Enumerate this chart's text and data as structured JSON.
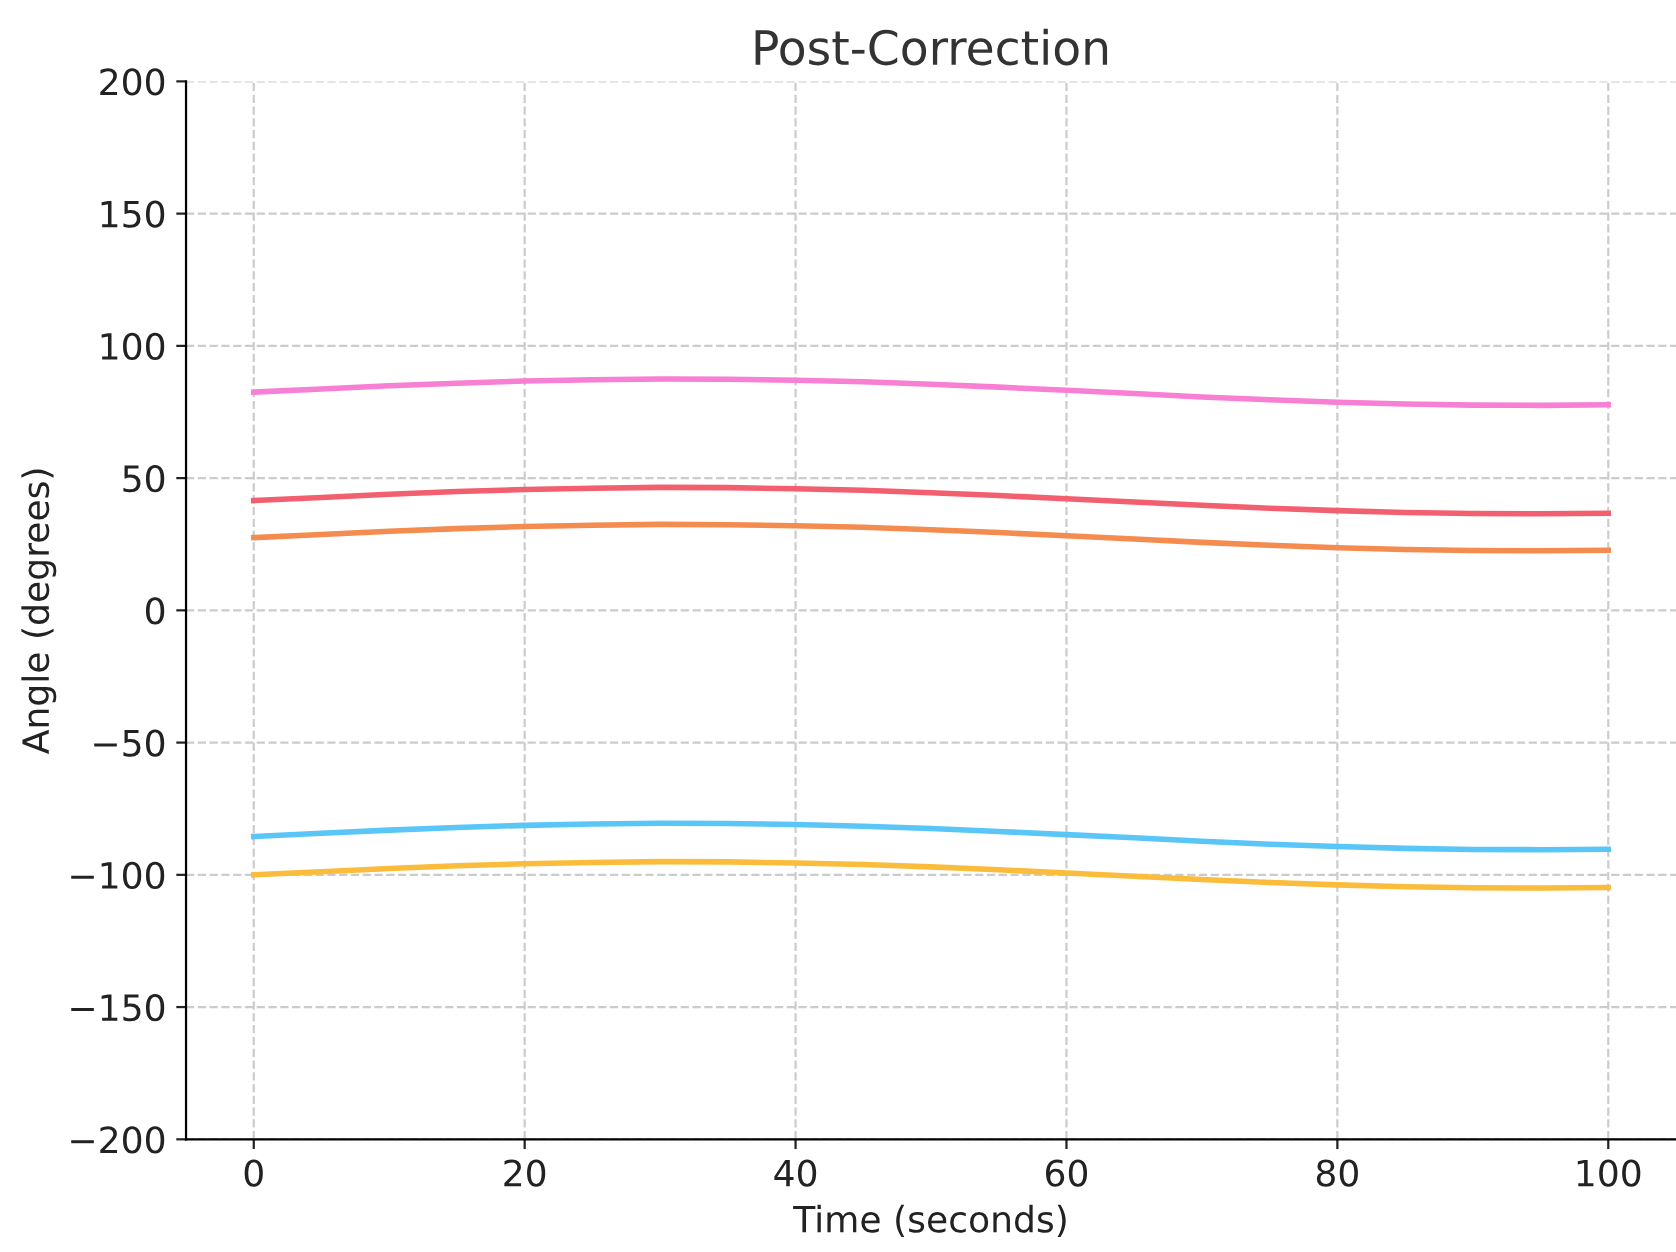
{
  "chart_data": {
    "type": "line",
    "title": "Post-Correction",
    "xlabel": "Time (seconds)",
    "ylabel": "Angle (degrees)",
    "x": [
      0,
      5,
      10,
      15,
      20,
      25,
      30,
      35,
      40,
      45,
      50,
      55,
      60,
      65,
      70,
      75,
      80,
      85,
      90,
      95,
      100
    ],
    "series": [
      {
        "color": "#f77fd4",
        "values": [
          82.5,
          83.7,
          84.9,
          85.9,
          86.7,
          87.2,
          87.5,
          87.4,
          87.0,
          86.4,
          85.5,
          84.4,
          83.2,
          82.0,
          80.7,
          79.6,
          78.7,
          78.0,
          77.6,
          77.5,
          77.7
        ]
      },
      {
        "color": "#f25f6e",
        "values": [
          41.5,
          42.7,
          43.9,
          44.9,
          45.7,
          46.2,
          46.5,
          46.4,
          46.0,
          45.4,
          44.5,
          43.4,
          42.2,
          41.0,
          39.7,
          38.6,
          37.7,
          37.0,
          36.6,
          36.5,
          36.7
        ]
      },
      {
        "color": "#f48b4f",
        "values": [
          27.5,
          28.7,
          29.9,
          30.9,
          31.7,
          32.2,
          32.5,
          32.4,
          32.0,
          31.4,
          30.5,
          29.4,
          28.2,
          27.0,
          25.7,
          24.6,
          23.7,
          23.0,
          22.6,
          22.5,
          22.7
        ]
      },
      {
        "color": "#5ac5f7",
        "values": [
          -85.5,
          -84.3,
          -83.1,
          -82.1,
          -81.3,
          -80.8,
          -80.5,
          -80.6,
          -81.0,
          -81.6,
          -82.5,
          -83.6,
          -84.8,
          -86.0,
          -87.3,
          -88.4,
          -89.3,
          -90.0,
          -90.4,
          -90.5,
          -90.3
        ]
      },
      {
        "color": "#fbbc3c",
        "values": [
          -100,
          -98.8,
          -97.6,
          -96.6,
          -95.8,
          -95.3,
          -95.0,
          -95.1,
          -95.5,
          -96.1,
          -97.0,
          -98.1,
          -99.3,
          -100.5,
          -101.8,
          -102.9,
          -103.8,
          -104.5,
          -104.9,
          -105.0,
          -104.8
        ]
      }
    ],
    "xlim": [
      -5,
      105
    ],
    "ylim": [
      -200,
      200
    ],
    "xticks": [
      0,
      20,
      40,
      60,
      80,
      100
    ],
    "yticks": [
      -200,
      -150,
      -100,
      -50,
      0,
      50,
      100,
      150,
      200
    ],
    "grid": true,
    "line_style": "solid",
    "marker": "none"
  }
}
